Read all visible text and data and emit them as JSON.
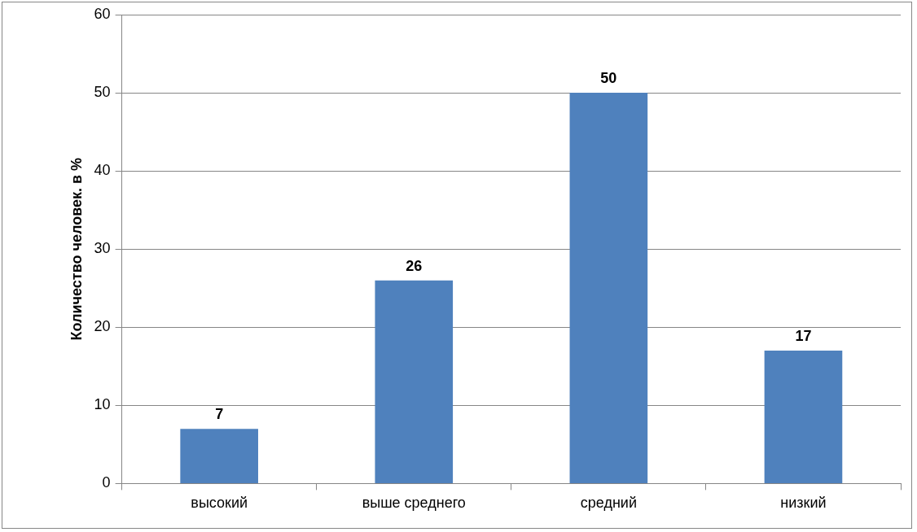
{
  "chart_data": {
    "type": "bar",
    "ylabel": "Количество человек. в %",
    "categories": [
      "высокий",
      "выше среднего",
      "средний",
      "низкий"
    ],
    "values": [
      7,
      26,
      50,
      17
    ],
    "color": "#4f81bd",
    "ylim": [
      0,
      60
    ],
    "yticks": [
      0,
      10,
      20,
      30,
      40,
      50,
      60
    ],
    "grid": "y",
    "legend": false,
    "data_labels": true
  }
}
